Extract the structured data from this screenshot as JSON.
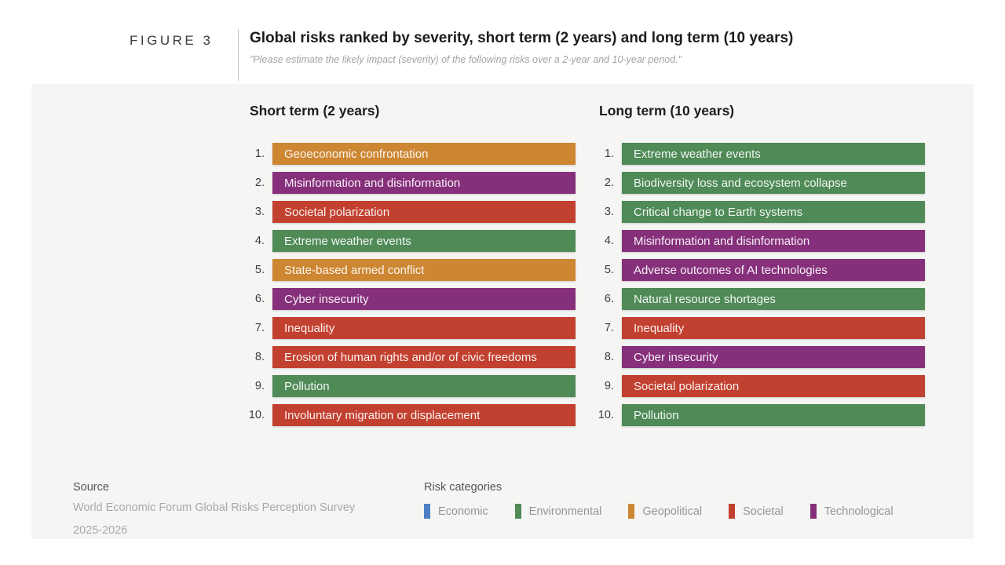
{
  "figure": {
    "label": "FIGURE 3",
    "title": "Global risks ranked by severity, short term (2 years) and long term (10 years)",
    "subtitle": "\"Please estimate the likely impact (severity) of the following risks over a 2-year and 10-year period.\""
  },
  "category_colors": {
    "Economic": "#4d7fc4",
    "Environmental": "#4f8a57",
    "Geopolitical": "#cd8632",
    "Societal": "#c2402f",
    "Technological": "#86307b"
  },
  "columns": [
    {
      "id": "short",
      "header": "Short term (2 years)",
      "items": [
        {
          "rank": "1.",
          "label": "Geoeconomic confrontation",
          "category": "Geopolitical"
        },
        {
          "rank": "2.",
          "label": "Misinformation and disinformation",
          "category": "Technological"
        },
        {
          "rank": "3.",
          "label": "Societal polarization",
          "category": "Societal"
        },
        {
          "rank": "4.",
          "label": "Extreme weather events",
          "category": "Environmental"
        },
        {
          "rank": "5.",
          "label": "State-based armed conflict",
          "category": "Geopolitical"
        },
        {
          "rank": "6.",
          "label": "Cyber insecurity",
          "category": "Technological"
        },
        {
          "rank": "7.",
          "label": "Inequality",
          "category": "Societal"
        },
        {
          "rank": "8.",
          "label": "Erosion of human rights and/or of civic freedoms",
          "category": "Societal"
        },
        {
          "rank": "9.",
          "label": "Pollution",
          "category": "Environmental"
        },
        {
          "rank": "10.",
          "label": "Involuntary migration or displacement",
          "category": "Societal"
        }
      ]
    },
    {
      "id": "long",
      "header": "Long term (10 years)",
      "items": [
        {
          "rank": "1.",
          "label": "Extreme weather events",
          "category": "Environmental"
        },
        {
          "rank": "2.",
          "label": "Biodiversity loss and ecosystem collapse",
          "category": "Environmental"
        },
        {
          "rank": "3.",
          "label": "Critical change to Earth systems",
          "category": "Environmental"
        },
        {
          "rank": "4.",
          "label": "Misinformation and disinformation",
          "category": "Technological"
        },
        {
          "rank": "5.",
          "label": "Adverse outcomes of AI technologies",
          "category": "Technological"
        },
        {
          "rank": "6.",
          "label": "Natural resource shortages",
          "category": "Environmental"
        },
        {
          "rank": "7.",
          "label": "Inequality",
          "category": "Societal"
        },
        {
          "rank": "8.",
          "label": "Cyber insecurity",
          "category": "Technological"
        },
        {
          "rank": "9.",
          "label": "Societal polarization",
          "category": "Societal"
        },
        {
          "rank": "10.",
          "label": "Pollution",
          "category": "Environmental"
        }
      ]
    }
  ],
  "source": {
    "heading": "Source",
    "lines": [
      "World Economic Forum Global Risks Perception Survey",
      "2025-2026"
    ]
  },
  "legend": {
    "heading": "Risk categories",
    "items": [
      "Economic",
      "Environmental",
      "Geopolitical",
      "Societal",
      "Technological"
    ]
  },
  "chart_data": {
    "type": "table",
    "title": "Global risks ranked by severity, short term (2 years) and long term (10 years)",
    "subtitle": "\"Please estimate the likely impact (severity) of the following risks over a 2-year and 10-year period.\"",
    "legend_position": "bottom",
    "series": [
      {
        "name": "Short term (2 years)",
        "ranking": [
          {
            "rank": 1,
            "risk": "Geoeconomic confrontation",
            "category": "Geopolitical"
          },
          {
            "rank": 2,
            "risk": "Misinformation and disinformation",
            "category": "Technological"
          },
          {
            "rank": 3,
            "risk": "Societal polarization",
            "category": "Societal"
          },
          {
            "rank": 4,
            "risk": "Extreme weather events",
            "category": "Environmental"
          },
          {
            "rank": 5,
            "risk": "State-based armed conflict",
            "category": "Geopolitical"
          },
          {
            "rank": 6,
            "risk": "Cyber insecurity",
            "category": "Technological"
          },
          {
            "rank": 7,
            "risk": "Inequality",
            "category": "Societal"
          },
          {
            "rank": 8,
            "risk": "Erosion of human rights and/or of civic freedoms",
            "category": "Societal"
          },
          {
            "rank": 9,
            "risk": "Pollution",
            "category": "Environmental"
          },
          {
            "rank": 10,
            "risk": "Involuntary migration or displacement",
            "category": "Societal"
          }
        ]
      },
      {
        "name": "Long term (10 years)",
        "ranking": [
          {
            "rank": 1,
            "risk": "Extreme weather events",
            "category": "Environmental"
          },
          {
            "rank": 2,
            "risk": "Biodiversity loss and ecosystem collapse",
            "category": "Environmental"
          },
          {
            "rank": 3,
            "risk": "Critical change to Earth systems",
            "category": "Environmental"
          },
          {
            "rank": 4,
            "risk": "Misinformation and disinformation",
            "category": "Technological"
          },
          {
            "rank": 5,
            "risk": "Adverse outcomes of AI technologies",
            "category": "Technological"
          },
          {
            "rank": 6,
            "risk": "Natural resource shortages",
            "category": "Environmental"
          },
          {
            "rank": 7,
            "risk": "Inequality",
            "category": "Societal"
          },
          {
            "rank": 8,
            "risk": "Cyber insecurity",
            "category": "Technological"
          },
          {
            "rank": 9,
            "risk": "Societal polarization",
            "category": "Societal"
          },
          {
            "rank": 10,
            "risk": "Pollution",
            "category": "Environmental"
          }
        ]
      }
    ],
    "categories_legend": [
      "Economic",
      "Environmental",
      "Geopolitical",
      "Societal",
      "Technological"
    ]
  }
}
